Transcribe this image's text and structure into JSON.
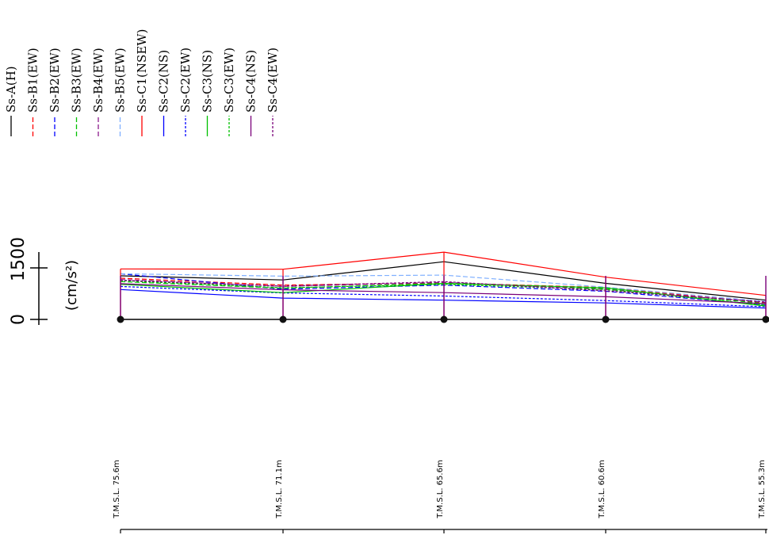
{
  "chart_data": {
    "type": "line",
    "orientation": "rotated",
    "units": "(cm/s²)",
    "scale_labels": [
      "0",
      "1500"
    ],
    "categories": [
      "T.M.S.L. 75.6m",
      "T.M.S.L. 71.1m",
      "T.M.S.L. 65.6m",
      "T.M.S.L. 60.6m",
      "T.M.S.L. 55.3m"
    ],
    "ylim": [
      0,
      1500
    ],
    "grid": false,
    "legend_position": "top-left",
    "series": [
      {
        "name": "Ss-A(H)",
        "color": "#000000",
        "dash": "solid",
        "values": [
          1270,
          1150,
          1680,
          1050,
          560
        ]
      },
      {
        "name": "Ss-B1(EW)",
        "color": "#ff0000",
        "dash": "dash",
        "values": [
          1200,
          1000,
          1060,
          930,
          480
        ]
      },
      {
        "name": "Ss-B2(EW)",
        "color": "#0000ff",
        "dash": "dash",
        "values": [
          1330,
          880,
          1000,
          820,
          420
        ]
      },
      {
        "name": "Ss-B3(EW)",
        "color": "#00c000",
        "dash": "dash",
        "values": [
          1100,
          910,
          1050,
          900,
          460
        ]
      },
      {
        "name": "Ss-B4(EW)",
        "color": "#8b1a8b",
        "dash": "dash",
        "values": [
          1160,
          960,
          1080,
          870,
          500
        ]
      },
      {
        "name": "Ss-B5(EW)",
        "color": "#80b0ff",
        "dash": "dash",
        "values": [
          1330,
          1260,
          1290,
          940,
          520
        ]
      },
      {
        "name": "Ss-C1(NSEW)",
        "color": "#ff0000",
        "dash": "solid",
        "values": [
          1470,
          1460,
          1960,
          1230,
          700
        ]
      },
      {
        "name": "Ss-C2(NS)",
        "color": "#0000ff",
        "dash": "solid",
        "values": [
          870,
          620,
          560,
          480,
          330
        ]
      },
      {
        "name": "Ss-C2(EW)",
        "color": "#0000ff",
        "dash": "dot",
        "values": [
          960,
          770,
          680,
          550,
          370
        ]
      },
      {
        "name": "Ss-C3(NS)",
        "color": "#00c000",
        "dash": "solid",
        "values": [
          1020,
          780,
          1050,
          920,
          390
        ]
      },
      {
        "name": "Ss-C3(EW)",
        "color": "#00c000",
        "dash": "dot",
        "values": [
          1130,
          920,
          1020,
          870,
          420
        ]
      },
      {
        "name": "Ss-C4(NS)",
        "color": "#7a007a",
        "dash": "solid",
        "values": [
          1040,
          860,
          780,
          660,
          460
        ]
      },
      {
        "name": "Ss-C4(EW)",
        "color": "#7a007a",
        "dash": "dot",
        "values": [
          1140,
          970,
          1100,
          830,
          510
        ]
      }
    ]
  }
}
